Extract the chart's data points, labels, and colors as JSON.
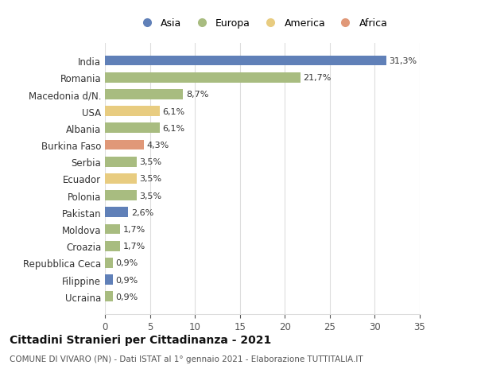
{
  "categories": [
    "India",
    "Romania",
    "Macedonia d/N.",
    "USA",
    "Albania",
    "Burkina Faso",
    "Serbia",
    "Ecuador",
    "Polonia",
    "Pakistan",
    "Moldova",
    "Croazia",
    "Repubblica Ceca",
    "Filippine",
    "Ucraina"
  ],
  "values": [
    31.3,
    21.7,
    8.7,
    6.1,
    6.1,
    4.3,
    3.5,
    3.5,
    3.5,
    2.6,
    1.7,
    1.7,
    0.9,
    0.9,
    0.9
  ],
  "labels": [
    "31,3%",
    "21,7%",
    "8,7%",
    "6,1%",
    "6,1%",
    "4,3%",
    "3,5%",
    "3,5%",
    "3,5%",
    "2,6%",
    "1,7%",
    "1,7%",
    "0,9%",
    "0,9%",
    "0,9%"
  ],
  "continents": [
    "Asia",
    "Europa",
    "Europa",
    "America",
    "Europa",
    "Africa",
    "Europa",
    "America",
    "Europa",
    "Asia",
    "Europa",
    "Europa",
    "Europa",
    "Asia",
    "Europa"
  ],
  "colors": {
    "Asia": "#6080b8",
    "Europa": "#a8bc80",
    "America": "#e8cc80",
    "Africa": "#e09878"
  },
  "legend_order": [
    "Asia",
    "Europa",
    "America",
    "Africa"
  ],
  "title": "Cittadini Stranieri per Cittadinanza - 2021",
  "subtitle": "COMUNE DI VIVARO (PN) - Dati ISTAT al 1° gennaio 2021 - Elaborazione TUTTITALIA.IT",
  "xlim": [
    0,
    35
  ],
  "xticks": [
    0,
    5,
    10,
    15,
    20,
    25,
    30,
    35
  ],
  "background_color": "#ffffff",
  "grid_color": "#dddddd"
}
